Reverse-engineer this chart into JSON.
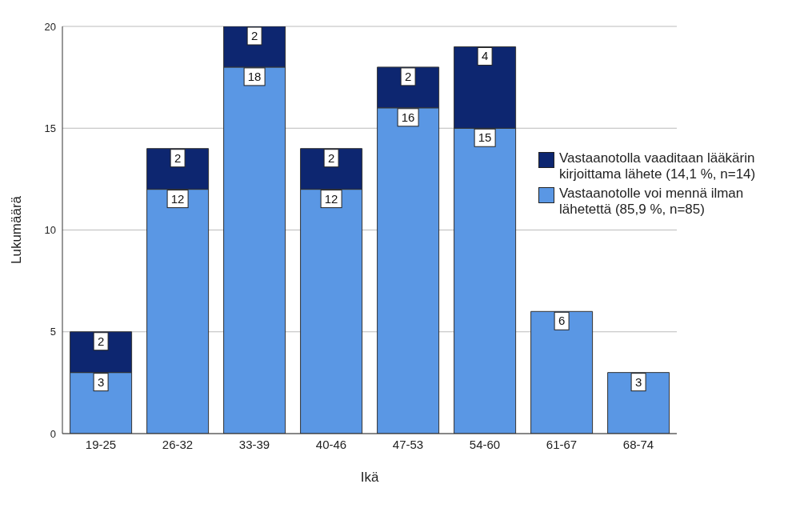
{
  "chart_data": {
    "type": "bar",
    "stacked": true,
    "xlabel": "Ikä",
    "ylabel": "Lukumäärä",
    "categories": [
      "19-25",
      "26-32",
      "33-39",
      "40-46",
      "47-53",
      "54-60",
      "61-67",
      "68-74"
    ],
    "series": [
      {
        "name": "Vastaanotolle voi mennä ilman lähetettä (85,9 %, n=85)",
        "color": "#5a97e4",
        "values": [
          3,
          12,
          18,
          12,
          16,
          15,
          6,
          3
        ]
      },
      {
        "name": "Vastaanotolla vaaditaan lääkärin kirjoittama lähete (14,1 %, n=14)",
        "color": "#0d2670",
        "values": [
          2,
          2,
          2,
          2,
          2,
          4,
          null,
          null
        ]
      }
    ],
    "ylim": [
      0,
      20
    ],
    "yticks": [
      0,
      5,
      10,
      15,
      20
    ],
    "grid": "y",
    "legend": "right",
    "data_labels": true
  }
}
